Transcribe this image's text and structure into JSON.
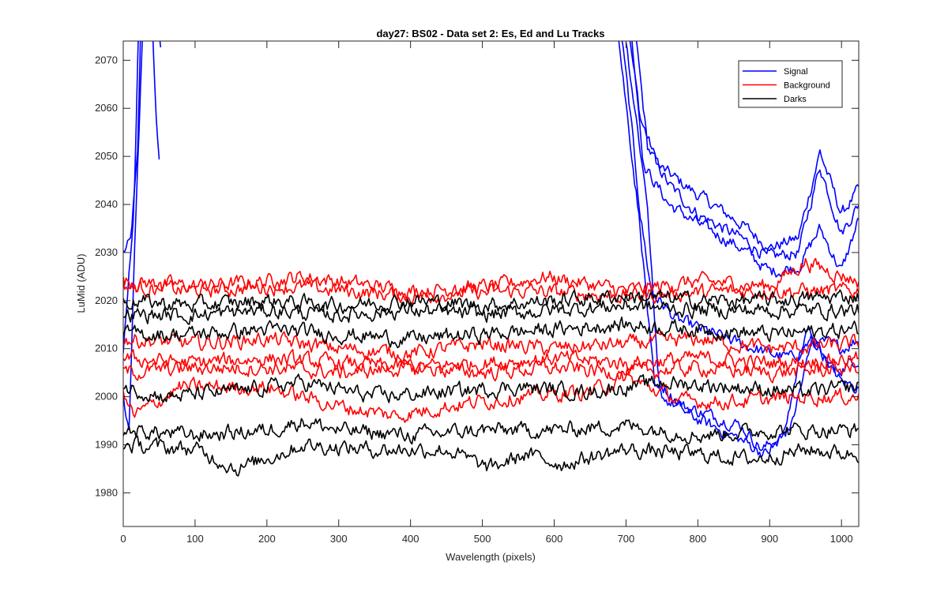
{
  "chart_data": {
    "type": "line",
    "title": "day27: BS02 - Data set 2: Es, Ed and Lu Tracks",
    "xlabel": "Wavelength (pixels)",
    "ylabel": "LuMid (ADU)",
    "xlim": [
      0,
      1024
    ],
    "ylim": [
      1973,
      2074
    ],
    "xticks": [
      0,
      100,
      200,
      300,
      400,
      500,
      600,
      700,
      800,
      900,
      1000
    ],
    "yticks": [
      1980,
      1990,
      2000,
      2010,
      2020,
      2030,
      2040,
      2050,
      2060,
      2070
    ],
    "grid": false,
    "legend_position": "top-right",
    "legend": [
      {
        "label": "Signal",
        "color": "#0000ff"
      },
      {
        "label": "Background",
        "color": "#ff0000"
      },
      {
        "label": "Darks",
        "color": "#000000"
      }
    ],
    "series": [
      {
        "group": "Signal",
        "color": "#0000ff",
        "noise": 1.2,
        "points": [
          [
            0,
            2030
          ],
          [
            10,
            2032
          ],
          [
            20,
            2050
          ],
          [
            25,
            2080
          ],
          [
            40,
            2080
          ],
          [
            45,
            2060
          ],
          [
            50,
            2050
          ]
        ]
      },
      {
        "group": "Signal",
        "color": "#0000ff",
        "noise": 1.2,
        "points": [
          [
            0,
            2008
          ],
          [
            15,
            2040
          ],
          [
            22,
            2080
          ]
        ]
      },
      {
        "group": "Signal",
        "color": "#0000ff",
        "noise": 1.2,
        "points": [
          [
            0,
            2000
          ],
          [
            8,
            1992
          ],
          [
            18,
            2040
          ],
          [
            28,
            2080
          ],
          [
            48,
            2080
          ],
          [
            52,
            2074
          ]
        ]
      },
      {
        "group": "Signal",
        "color": "#0000ff",
        "noise": 1.1,
        "points": [
          [
            700,
            2080
          ],
          [
            720,
            2058
          ],
          [
            745,
            2048
          ],
          [
            800,
            2042
          ],
          [
            860,
            2036
          ],
          [
            900,
            2031
          ],
          [
            940,
            2033
          ],
          [
            970,
            2051
          ],
          [
            1000,
            2038
          ],
          [
            1024,
            2043
          ]
        ]
      },
      {
        "group": "Signal",
        "color": "#0000ff",
        "noise": 1.1,
        "points": [
          [
            710,
            2080
          ],
          [
            730,
            2052
          ],
          [
            760,
            2044
          ],
          [
            800,
            2038
          ],
          [
            860,
            2033
          ],
          [
            900,
            2029
          ],
          [
            940,
            2030
          ],
          [
            970,
            2048
          ],
          [
            1000,
            2034
          ],
          [
            1024,
            2040
          ]
        ]
      },
      {
        "group": "Signal",
        "color": "#0000ff",
        "noise": 1.1,
        "points": [
          [
            705,
            2080
          ],
          [
            725,
            2048
          ],
          [
            760,
            2040
          ],
          [
            800,
            2036
          ],
          [
            860,
            2031
          ],
          [
            900,
            2026
          ],
          [
            940,
            2027
          ],
          [
            970,
            2035
          ],
          [
            1000,
            2026
          ],
          [
            1024,
            2037
          ]
        ]
      },
      {
        "group": "Signal",
        "color": "#0000ff",
        "noise": 1.1,
        "points": [
          [
            690,
            2080
          ],
          [
            705,
            2060
          ],
          [
            720,
            2038
          ],
          [
            735,
            2022
          ],
          [
            770,
            2016
          ],
          [
            840,
            2012
          ],
          [
            900,
            2009
          ],
          [
            930,
            2008
          ],
          [
            960,
            2012
          ],
          [
            1000,
            2010
          ],
          [
            1024,
            2012
          ]
        ]
      },
      {
        "group": "Signal",
        "color": "#0000ff",
        "noise": 1.1,
        "points": [
          [
            700,
            2074
          ],
          [
            730,
            2040
          ],
          [
            745,
            2003
          ],
          [
            780,
            1998
          ],
          [
            860,
            1994
          ],
          [
            890,
            1989
          ],
          [
            920,
            1992
          ],
          [
            950,
            2014
          ],
          [
            990,
            2005
          ],
          [
            1024,
            2008
          ]
        ]
      },
      {
        "group": "Signal",
        "color": "#0000ff",
        "noise": 1.1,
        "points": [
          [
            690,
            2074
          ],
          [
            720,
            2035
          ],
          [
            740,
            2001
          ],
          [
            790,
            1996
          ],
          [
            860,
            1991
          ],
          [
            895,
            1988
          ],
          [
            930,
            1994
          ],
          [
            960,
            2012
          ],
          [
            1000,
            2003
          ],
          [
            1024,
            2002
          ]
        ]
      },
      {
        "group": "Background",
        "color": "#ff0000",
        "noise": 1.3,
        "points": [
          [
            0,
            2024
          ],
          [
            100,
            2023
          ],
          [
            200,
            2024
          ],
          [
            250,
            2025
          ],
          [
            400,
            2022
          ],
          [
            520,
            2023
          ],
          [
            590,
            2025
          ],
          [
            700,
            2022
          ],
          [
            800,
            2024
          ],
          [
            900,
            2023
          ],
          [
            950,
            2028
          ],
          [
            1024,
            2024
          ]
        ]
      },
      {
        "group": "Background",
        "color": "#ff0000",
        "noise": 1.3,
        "points": [
          [
            0,
            2023
          ],
          [
            100,
            2022
          ],
          [
            220,
            2023
          ],
          [
            400,
            2021
          ],
          [
            560,
            2022
          ],
          [
            700,
            2021
          ],
          [
            850,
            2022
          ],
          [
            1024,
            2022
          ]
        ]
      },
      {
        "group": "Background",
        "color": "#ff0000",
        "noise": 1.3,
        "points": [
          [
            0,
            2012
          ],
          [
            100,
            2011
          ],
          [
            200,
            2012
          ],
          [
            300,
            2010
          ],
          [
            400,
            2009
          ],
          [
            500,
            2011
          ],
          [
            600,
            2010
          ],
          [
            700,
            2011
          ],
          [
            800,
            2012
          ],
          [
            900,
            2010
          ],
          [
            1024,
            2011
          ]
        ]
      },
      {
        "group": "Background",
        "color": "#ff0000",
        "noise": 1.3,
        "points": [
          [
            0,
            2008
          ],
          [
            100,
            2007
          ],
          [
            200,
            2008
          ],
          [
            300,
            2007
          ],
          [
            400,
            2006
          ],
          [
            500,
            2007
          ],
          [
            600,
            2008
          ],
          [
            700,
            2007
          ],
          [
            800,
            2008
          ],
          [
            900,
            2007
          ],
          [
            1024,
            2008
          ]
        ]
      },
      {
        "group": "Background",
        "color": "#ff0000",
        "noise": 1.3,
        "points": [
          [
            0,
            2005
          ],
          [
            100,
            2006
          ],
          [
            200,
            2006
          ],
          [
            300,
            2005
          ],
          [
            400,
            2006
          ],
          [
            500,
            2005
          ],
          [
            600,
            2006
          ],
          [
            700,
            2005
          ],
          [
            800,
            2006
          ],
          [
            900,
            2005
          ],
          [
            1024,
            2006
          ]
        ]
      },
      {
        "group": "Background",
        "color": "#ff0000",
        "noise": 1.3,
        "points": [
          [
            0,
            2000
          ],
          [
            15,
            1996
          ],
          [
            80,
            2002
          ],
          [
            200,
            2002
          ],
          [
            300,
            1998
          ],
          [
            380,
            1996
          ],
          [
            450,
            1998
          ],
          [
            550,
            2000
          ],
          [
            650,
            2001
          ],
          [
            700,
            2004
          ],
          [
            780,
            1999
          ],
          [
            850,
            1999
          ],
          [
            950,
            2000
          ],
          [
            1024,
            2000
          ]
        ]
      },
      {
        "group": "Darks",
        "color": "#000000",
        "noise": 1.3,
        "points": [
          [
            0,
            2020
          ],
          [
            100,
            2019
          ],
          [
            200,
            2020
          ],
          [
            300,
            2019
          ],
          [
            400,
            2020
          ],
          [
            500,
            2019
          ],
          [
            600,
            2020
          ],
          [
            700,
            2021
          ],
          [
            800,
            2020
          ],
          [
            900,
            2020
          ],
          [
            1024,
            2021
          ]
        ]
      },
      {
        "group": "Darks",
        "color": "#000000",
        "noise": 1.3,
        "points": [
          [
            0,
            2017
          ],
          [
            100,
            2017
          ],
          [
            200,
            2018
          ],
          [
            300,
            2017
          ],
          [
            400,
            2018
          ],
          [
            500,
            2017
          ],
          [
            600,
            2018
          ],
          [
            700,
            2019
          ],
          [
            800,
            2018
          ],
          [
            900,
            2018
          ],
          [
            1024,
            2018
          ]
        ]
      },
      {
        "group": "Darks",
        "color": "#000000",
        "noise": 1.3,
        "points": [
          [
            0,
            2013
          ],
          [
            100,
            2013
          ],
          [
            200,
            2014
          ],
          [
            300,
            2013
          ],
          [
            400,
            2012
          ],
          [
            500,
            2013
          ],
          [
            600,
            2014
          ],
          [
            700,
            2015
          ],
          [
            800,
            2014
          ],
          [
            900,
            2013
          ],
          [
            1024,
            2014
          ]
        ]
      },
      {
        "group": "Darks",
        "color": "#000000",
        "noise": 1.3,
        "points": [
          [
            0,
            2002
          ],
          [
            60,
            2000
          ],
          [
            150,
            2001
          ],
          [
            250,
            2003
          ],
          [
            350,
            2000
          ],
          [
            450,
            2001
          ],
          [
            550,
            2002
          ],
          [
            650,
            2001
          ],
          [
            750,
            2003
          ],
          [
            850,
            2002
          ],
          [
            950,
            2001
          ],
          [
            1024,
            2002
          ]
        ]
      },
      {
        "group": "Darks",
        "color": "#000000",
        "noise": 1.3,
        "points": [
          [
            0,
            1993
          ],
          [
            100,
            1992
          ],
          [
            200,
            1993
          ],
          [
            250,
            1995
          ],
          [
            300,
            1993
          ],
          [
            400,
            1992
          ],
          [
            500,
            1993
          ],
          [
            600,
            1993
          ],
          [
            700,
            1994
          ],
          [
            800,
            1992
          ],
          [
            900,
            1993
          ],
          [
            1024,
            1993
          ]
        ]
      },
      {
        "group": "Darks",
        "color": "#000000",
        "noise": 1.3,
        "points": [
          [
            0,
            1990
          ],
          [
            100,
            1989
          ],
          [
            160,
            1985
          ],
          [
            250,
            1990
          ],
          [
            350,
            1989
          ],
          [
            450,
            1989
          ],
          [
            510,
            1985
          ],
          [
            560,
            1988
          ],
          [
            610,
            1986
          ],
          [
            700,
            1989
          ],
          [
            800,
            1988
          ],
          [
            880,
            1987
          ],
          [
            950,
            1989
          ],
          [
            1024,
            1988
          ]
        ]
      }
    ]
  }
}
